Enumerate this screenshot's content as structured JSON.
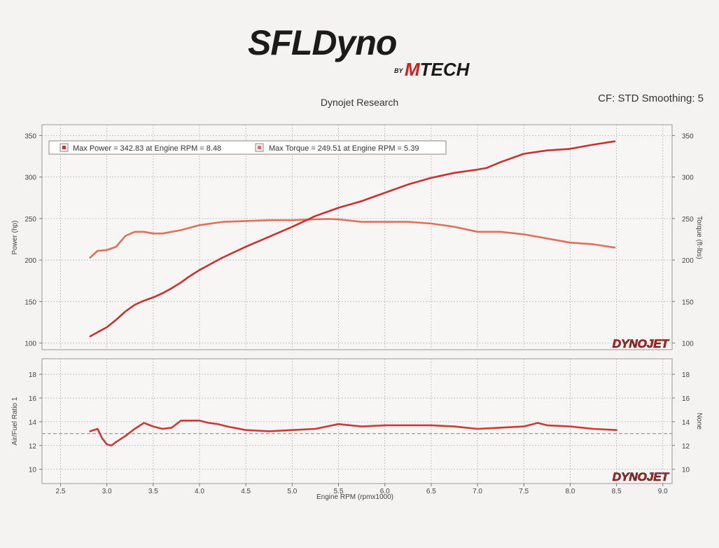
{
  "header": {
    "logo_main": "SFLDyno",
    "logo_by": "BY",
    "logo_brand": "MTECH",
    "subtitle": "Dynojet Research",
    "settings": "CF: STD Smoothing: 5"
  },
  "colors": {
    "power": "#c8322c",
    "torque": "#e0705a",
    "afr": "#cc3a36",
    "grid": "#b8b8b8",
    "logo_red": "#d41e1e"
  },
  "chart_data": [
    {
      "type": "line",
      "title": "",
      "legend": [
        "Max Power = 342.83 at Engine RPM = 8.48",
        "Max Torque = 249.51 at Engine RPM = 5.39"
      ],
      "legend_position": "top-left",
      "ylabel": "Power (hp)",
      "y2label": "Torque (ft-lbs)",
      "ylim": [
        92,
        363
      ],
      "y2lim": [
        92,
        363
      ],
      "yticks": [
        100,
        150,
        200,
        250,
        300,
        350
      ],
      "y2ticks": [
        100,
        150,
        200,
        250,
        300,
        350
      ],
      "grid": true,
      "watermark": "DYNOJET",
      "series": [
        {
          "name": "Power",
          "axis": "left",
          "x": [
            2.82,
            2.9,
            3.0,
            3.1,
            3.2,
            3.3,
            3.4,
            3.5,
            3.6,
            3.7,
            3.8,
            3.9,
            4.0,
            4.25,
            4.5,
            4.75,
            5.0,
            5.25,
            5.5,
            5.75,
            6.0,
            6.25,
            6.5,
            6.75,
            7.0,
            7.1,
            7.25,
            7.5,
            7.75,
            8.0,
            8.25,
            8.48
          ],
          "y": [
            108,
            113,
            119,
            128,
            138,
            146,
            151,
            155,
            160,
            166,
            173,
            181,
            188,
            203,
            216,
            228,
            240,
            253,
            263,
            271,
            281,
            291,
            299,
            305,
            309,
            311,
            318,
            328,
            332,
            334,
            339,
            343
          ]
        },
        {
          "name": "Torque",
          "axis": "right",
          "x": [
            2.82,
            2.9,
            3.0,
            3.1,
            3.2,
            3.3,
            3.4,
            3.5,
            3.6,
            3.8,
            4.0,
            4.25,
            4.5,
            4.75,
            5.0,
            5.25,
            5.39,
            5.5,
            5.75,
            6.0,
            6.25,
            6.5,
            6.75,
            7.0,
            7.25,
            7.5,
            7.75,
            8.0,
            8.25,
            8.48
          ],
          "y": [
            203,
            211,
            212,
            216,
            229,
            234,
            234,
            232,
            232,
            236,
            242,
            246,
            247,
            248,
            248,
            249,
            249.5,
            249,
            246,
            246,
            246,
            244,
            240,
            234,
            234,
            231,
            226,
            221,
            219,
            215
          ]
        }
      ]
    },
    {
      "type": "line",
      "title": "",
      "xlabel": "Engine RPM (rpmx1000)",
      "ylabel": "Air/Fuel Ratio 1",
      "y2label": "None",
      "xlim": [
        2.3,
        9.1
      ],
      "xticks": [
        2.5,
        3.0,
        3.5,
        4.0,
        4.5,
        5.0,
        5.5,
        6.0,
        6.5,
        7.0,
        7.5,
        8.0,
        8.5,
        9.0
      ],
      "ylim": [
        8.8,
        19.3
      ],
      "yticks": [
        10,
        12,
        14,
        16,
        18
      ],
      "y2ticks": [
        10,
        12,
        14,
        16,
        18
      ],
      "reference_line": 13,
      "grid": true,
      "watermark": "DYNOJET",
      "series": [
        {
          "name": "Air/Fuel Ratio 1",
          "x": [
            2.82,
            2.9,
            2.95,
            3.0,
            3.05,
            3.1,
            3.2,
            3.3,
            3.4,
            3.5,
            3.6,
            3.7,
            3.8,
            3.9,
            4.0,
            4.1,
            4.2,
            4.3,
            4.5,
            4.75,
            5.0,
            5.25,
            5.5,
            5.75,
            6.0,
            6.25,
            6.5,
            6.75,
            7.0,
            7.25,
            7.5,
            7.65,
            7.75,
            8.0,
            8.25,
            8.5
          ],
          "y": [
            13.2,
            13.4,
            12.6,
            12.1,
            12.0,
            12.3,
            12.8,
            13.4,
            13.9,
            13.6,
            13.4,
            13.5,
            14.1,
            14.1,
            14.1,
            13.9,
            13.8,
            13.6,
            13.3,
            13.2,
            13.3,
            13.4,
            13.8,
            13.6,
            13.7,
            13.7,
            13.7,
            13.6,
            13.4,
            13.5,
            13.6,
            13.9,
            13.7,
            13.6,
            13.4,
            13.3
          ]
        }
      ]
    }
  ]
}
